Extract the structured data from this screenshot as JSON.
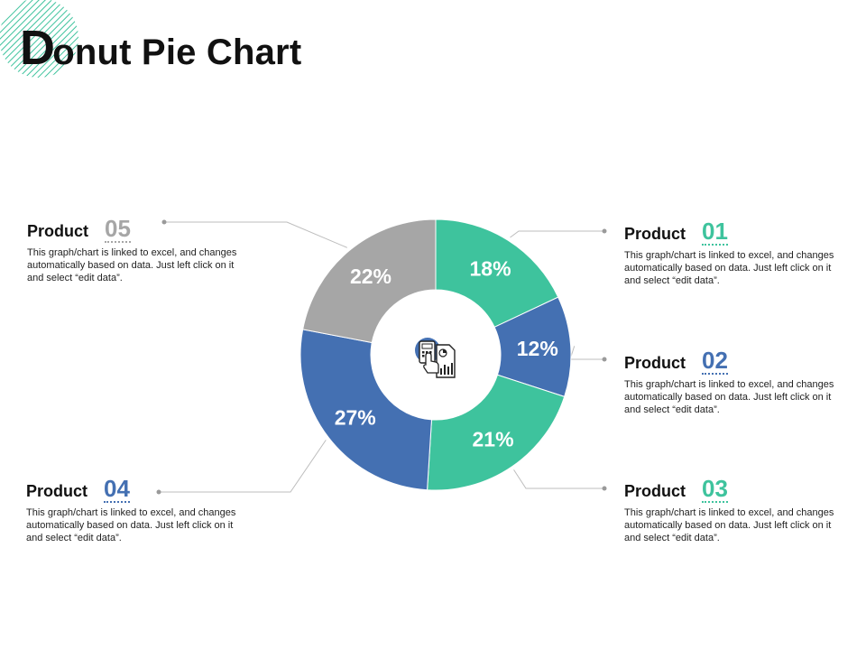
{
  "title": {
    "first_letter": "D",
    "rest": "onut Pie Chart"
  },
  "colors": {
    "teal": "#3ec39d",
    "blue": "#4470b2",
    "gray": "#a6a6a6",
    "teal_text": "#3ec39d",
    "blue_text": "#4470b2",
    "gray_text": "#a6a6a6",
    "connector": "#bdbdbd"
  },
  "center_icon": "calculator-chart-hand-icon",
  "chart_data": {
    "type": "pie",
    "donut": true,
    "slices": [
      {
        "label": "Product 01",
        "value": 18,
        "display": "18%",
        "color": "#3ec39d"
      },
      {
        "label": "Product 02",
        "value": 12,
        "display": "12%",
        "color": "#4470b2"
      },
      {
        "label": "Product 03",
        "value": 21,
        "display": "21%",
        "color": "#3ec39d"
      },
      {
        "label": "Product 04",
        "value": 27,
        "display": "27%",
        "color": "#4470b2"
      },
      {
        "label": "Product 05",
        "value": 22,
        "display": "22%",
        "color": "#a6a6a6"
      }
    ]
  },
  "products": [
    {
      "label": "Product",
      "number": "01",
      "desc": "This graph/chart is linked to excel, and changes automatically based on data. Just left click on it and select “edit data”."
    },
    {
      "label": "Product",
      "number": "02",
      "desc": "This graph/chart is linked to excel, and changes automatically based on data. Just left click on it and select “edit data”."
    },
    {
      "label": "Product",
      "number": "03",
      "desc": "This graph/chart is linked to excel, and changes automatically based on data. Just left click on it and select “edit data”."
    },
    {
      "label": "Product",
      "number": "04",
      "desc": "This graph/chart is linked to excel, and changes automatically based on data. Just left click on it and select “edit data”."
    },
    {
      "label": "Product",
      "number": "05",
      "desc": "This graph/chart is linked to excel, and changes automatically based on data. Just left click on it and select “edit data”."
    }
  ]
}
